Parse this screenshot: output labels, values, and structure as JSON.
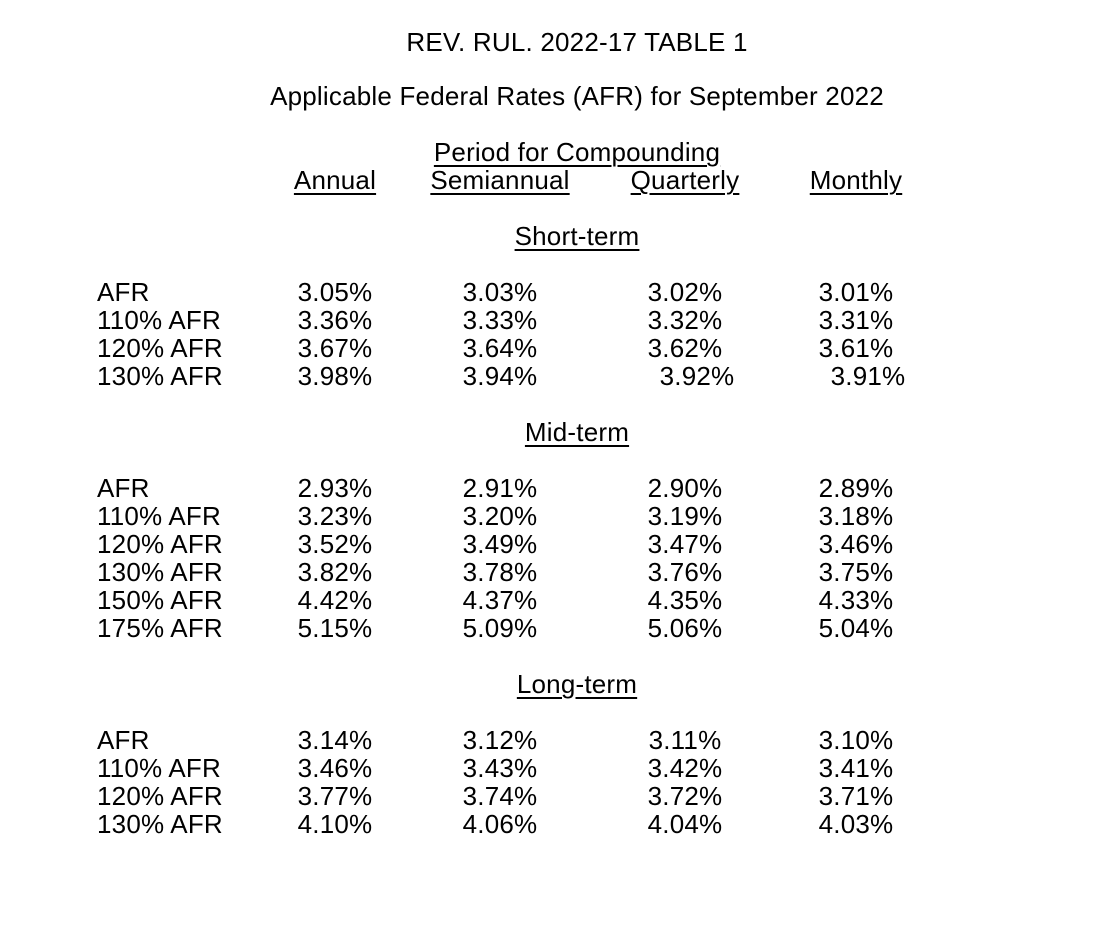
{
  "document": {
    "title": "REV. RUL. 2022-17 TABLE 1",
    "subtitle": "Applicable Federal Rates (AFR) for September 2022"
  },
  "table": {
    "compounding_header": "Period for Compounding",
    "columns": [
      "Annual",
      "Semiannual",
      "Quarterly",
      "Monthly"
    ],
    "sections": [
      {
        "title": "Short-term",
        "rows": [
          {
            "label": "AFR",
            "values": [
              "3.05%",
              "3.03%",
              "3.02%",
              "3.01%"
            ]
          },
          {
            "label": "110% AFR",
            "values": [
              "3.36%",
              "3.33%",
              "3.32%",
              "3.31%"
            ]
          },
          {
            "label": "120% AFR",
            "values": [
              "3.67%",
              "3.64%",
              "3.62%",
              "3.61%"
            ]
          },
          {
            "label": "130% AFR",
            "values": [
              "3.98%",
              "3.94%",
              "3.92%",
              "3.91%"
            ]
          }
        ]
      },
      {
        "title": "Mid-term",
        "rows": [
          {
            "label": "AFR",
            "values": [
              "2.93%",
              "2.91%",
              "2.90%",
              "2.89%"
            ]
          },
          {
            "label": "110% AFR",
            "values": [
              "3.23%",
              "3.20%",
              "3.19%",
              "3.18%"
            ]
          },
          {
            "label": "120% AFR",
            "values": [
              "3.52%",
              "3.49%",
              "3.47%",
              "3.46%"
            ]
          },
          {
            "label": "130% AFR",
            "values": [
              "3.82%",
              "3.78%",
              "3.76%",
              "3.75%"
            ]
          },
          {
            "label": "150% AFR",
            "values": [
              "4.42%",
              "4.37%",
              "4.35%",
              "4.33%"
            ]
          },
          {
            "label": "175% AFR",
            "values": [
              "5.15%",
              "5.09%",
              "5.06%",
              "5.04%"
            ]
          }
        ]
      },
      {
        "title": "Long-term",
        "rows": [
          {
            "label": "AFR",
            "values": [
              "3.14%",
              "3.12%",
              "3.11%",
              "3.10%"
            ]
          },
          {
            "label": "110% AFR",
            "values": [
              "3.46%",
              "3.43%",
              "3.42%",
              "3.41%"
            ]
          },
          {
            "label": "120% AFR",
            "values": [
              "3.77%",
              "3.74%",
              "3.72%",
              "3.71%"
            ]
          },
          {
            "label": "130% AFR",
            "values": [
              "4.10%",
              "4.06%",
              "4.04%",
              "4.03%"
            ]
          }
        ]
      }
    ]
  },
  "colors": {
    "text": "#000000",
    "background": "#ffffff"
  }
}
